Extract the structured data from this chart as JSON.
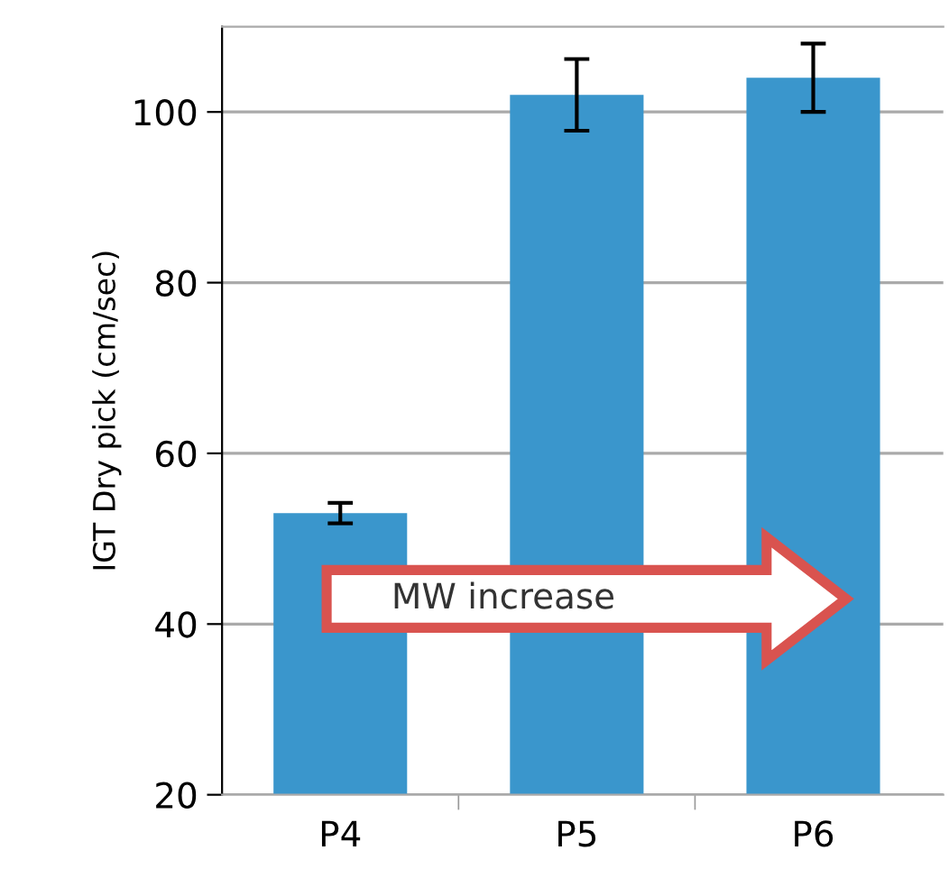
{
  "chart_data": {
    "type": "bar",
    "ylabel": "IGT Dry pick (cm/sec)",
    "categories": [
      "P4",
      "P5",
      "P6"
    ],
    "series": [
      {
        "color": "#3a96cc",
        "values": [
          53,
          102,
          104
        ],
        "errors": [
          1.2,
          4.2,
          4
        ]
      }
    ],
    "ylim": [
      20,
      110
    ],
    "yticks": [
      20,
      40,
      60,
      80,
      100
    ],
    "grid": "y",
    "legend": false,
    "annotations": [
      "MW increase"
    ]
  }
}
